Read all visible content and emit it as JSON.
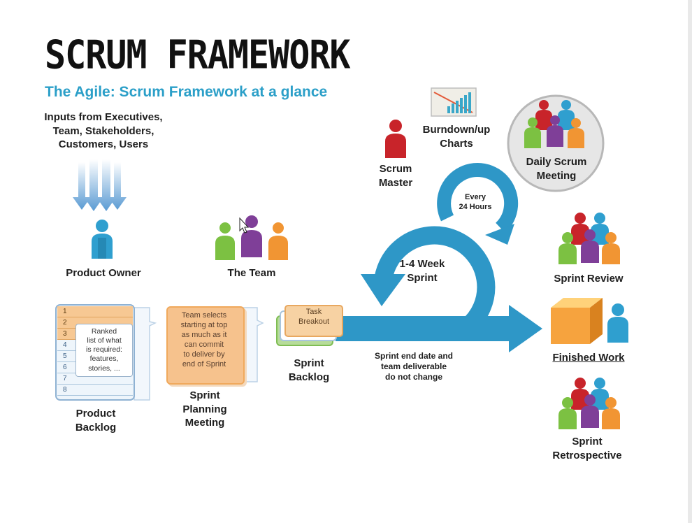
{
  "title": "SCRUM FRAMEWORK",
  "subtitle": "The Agile: Scrum Framework at a glance",
  "inputs": [
    "Inputs from Executives,",
    "Team, Stakeholders,",
    "Customers, Users"
  ],
  "roles": {
    "product_owner": "Product Owner",
    "team": "The Team",
    "scrum_master": [
      "Scrum",
      "Master"
    ]
  },
  "burndown": [
    "Burndown/up",
    "Charts"
  ],
  "daily_scrum": [
    "Daily Scrum",
    "Meeting"
  ],
  "every_24": [
    "Every",
    "24 Hours"
  ],
  "sprint_loop": [
    "1-4 Week",
    "Sprint"
  ],
  "product_backlog": {
    "rows": [
      "1",
      "2",
      "3",
      "4",
      "5",
      "6",
      "7",
      "8"
    ],
    "note": [
      "Ranked",
      "list of what",
      "is required:",
      "features,",
      "stories, ..."
    ],
    "label": [
      "Product",
      "Backlog"
    ]
  },
  "sprint_planning": {
    "card": [
      "Team selects",
      "starting at top",
      "as much as it",
      "can commit",
      "to deliver by",
      "end of Sprint"
    ],
    "label": [
      "Sprint",
      "Planning",
      "Meeting"
    ]
  },
  "sprint_backlog": {
    "card": [
      "Task",
      "Breakout"
    ],
    "label": [
      "Sprint",
      "Backlog"
    ]
  },
  "sprint_note": [
    "Sprint end date and",
    "team deliverable",
    "do not change"
  ],
  "outcomes": {
    "sprint_review": "Sprint Review",
    "finished_work": "Finished Work",
    "retrospective": [
      "Sprint",
      "Retrospective"
    ]
  },
  "colors": {
    "accent": "#2b9fc8",
    "arrow": "#2e97c7",
    "orange": "#f6c28d",
    "red": "#c8242a"
  }
}
